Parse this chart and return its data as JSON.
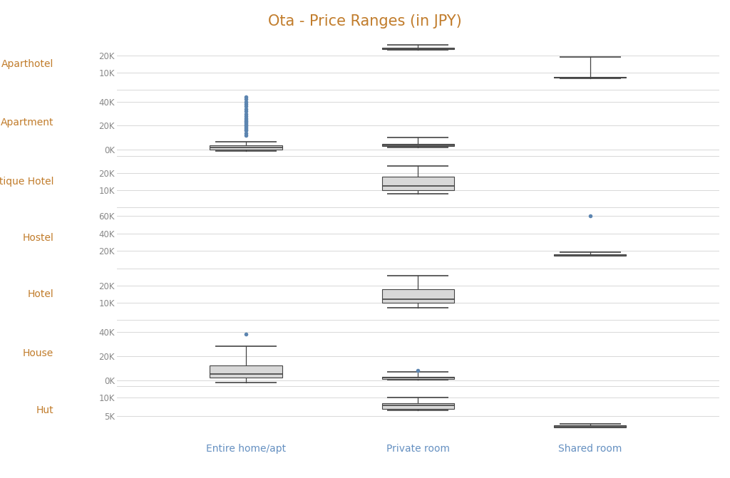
{
  "title": "Ota - Price Ranges (in JPY)",
  "title_color": "#c17c2b",
  "property_types": [
    "Aparthotel",
    "Apartment",
    "Boutique Hotel",
    "Hostel",
    "Hotel",
    "House",
    "Hut"
  ],
  "room_types": [
    "Entire home/apt",
    "Private room",
    "Shared room"
  ],
  "xlabel_color": "#6590c1",
  "ylabel_color": "#c17c2b",
  "background_color": "#ffffff",
  "grid_color": "#d8d8d8",
  "box_facecolor": "#d8d8d8",
  "box_edgecolor": "#444444",
  "median_color": "#444444",
  "whisker_color": "#444444",
  "flier_color": "#5c85b0",
  "row_height_ratios": [
    1,
    1.3,
    1,
    1.2,
    1,
    1.3,
    0.95
  ],
  "y_scales": {
    "Aparthotel": {
      "ylim": [
        0,
        30000
      ],
      "yticks": [
        10000,
        20000
      ],
      "yticklabels": [
        "10K",
        "20K"
      ]
    },
    "Apartment": {
      "ylim": [
        -5000,
        50000
      ],
      "yticks": [
        0,
        20000,
        40000
      ],
      "yticklabels": [
        "0K",
        "20K",
        "40K"
      ]
    },
    "Boutique Hotel": {
      "ylim": [
        0,
        30000
      ],
      "yticks": [
        10000,
        20000
      ],
      "yticklabels": [
        "10K",
        "20K"
      ]
    },
    "Hostel": {
      "ylim": [
        0,
        70000
      ],
      "yticks": [
        20000,
        40000,
        60000
      ],
      "yticklabels": [
        "20K",
        "40K",
        "60K"
      ]
    },
    "Hotel": {
      "ylim": [
        0,
        30000
      ],
      "yticks": [
        10000,
        20000
      ],
      "yticklabels": [
        "10K",
        "20K"
      ]
    },
    "House": {
      "ylim": [
        -5000,
        50000
      ],
      "yticks": [
        0,
        20000,
        40000
      ],
      "yticklabels": [
        "0K",
        "20K",
        "40K"
      ]
    },
    "Hut": {
      "ylim": [
        0,
        13000
      ],
      "yticks": [
        5000,
        10000
      ],
      "yticklabels": [
        "5K",
        "10K"
      ]
    }
  },
  "boxes": {
    "Aparthotel": {
      "Entire home/apt": null,
      "Private room": {
        "min": 23000,
        "q1": 23500,
        "median": 24000,
        "q3": 24500,
        "max": 26000,
        "outliers": []
      },
      "Shared room": {
        "min": 6500,
        "q1": 6800,
        "median": 7000,
        "q3": 7200,
        "max": 19000,
        "outliers": []
      }
    },
    "Apartment": {
      "Entire home/apt": {
        "min": -1000,
        "q1": 500,
        "median": 2000,
        "q3": 4000,
        "max": 7000,
        "outliers": [
          12000,
          14000,
          16000,
          17000,
          18000,
          19000,
          20000,
          21000,
          22000,
          23000,
          24000,
          25000,
          26000,
          28000,
          30000,
          32000,
          34000,
          36000,
          38000,
          40000,
          42000,
          44000
        ]
      },
      "Private room": {
        "min": 2000,
        "q1": 3000,
        "median": 4000,
        "q3": 5000,
        "max": 10000,
        "outliers": []
      },
      "Shared room": null
    },
    "Boutique Hotel": {
      "Entire home/apt": null,
      "Private room": {
        "min": 8000,
        "q1": 10000,
        "median": 12500,
        "q3": 18000,
        "max": 24000,
        "outliers": []
      },
      "Shared room": null
    },
    "Hostel": {
      "Entire home/apt": null,
      "Private room": null,
      "Shared room": {
        "min": 14500,
        "q1": 15000,
        "median": 15500,
        "q3": 16000,
        "max": 18500,
        "outliers": [
          60000
        ]
      }
    },
    "Hotel": {
      "Entire home/apt": null,
      "Private room": {
        "min": 7000,
        "q1": 10000,
        "median": 12000,
        "q3": 18000,
        "max": 26000,
        "outliers": []
      },
      "Shared room": null
    },
    "House": {
      "Entire home/apt": {
        "min": -2000,
        "q1": 2000,
        "median": 5000,
        "q3": 12000,
        "max": 28000,
        "outliers": [
          38000
        ]
      },
      "Private room": {
        "min": 500,
        "q1": 1000,
        "median": 2000,
        "q3": 3000,
        "max": 7000,
        "outliers": [
          8000
        ]
      },
      "Shared room": null
    },
    "Hut": {
      "Entire home/apt": null,
      "Private room": {
        "min": 6500,
        "q1": 7000,
        "median": 8000,
        "q3": 8500,
        "max": 10000,
        "outliers": []
      },
      "Shared room": {
        "min": 2000,
        "q1": 2100,
        "median": 2300,
        "q3": 2500,
        "max": 3000,
        "outliers": []
      }
    }
  }
}
